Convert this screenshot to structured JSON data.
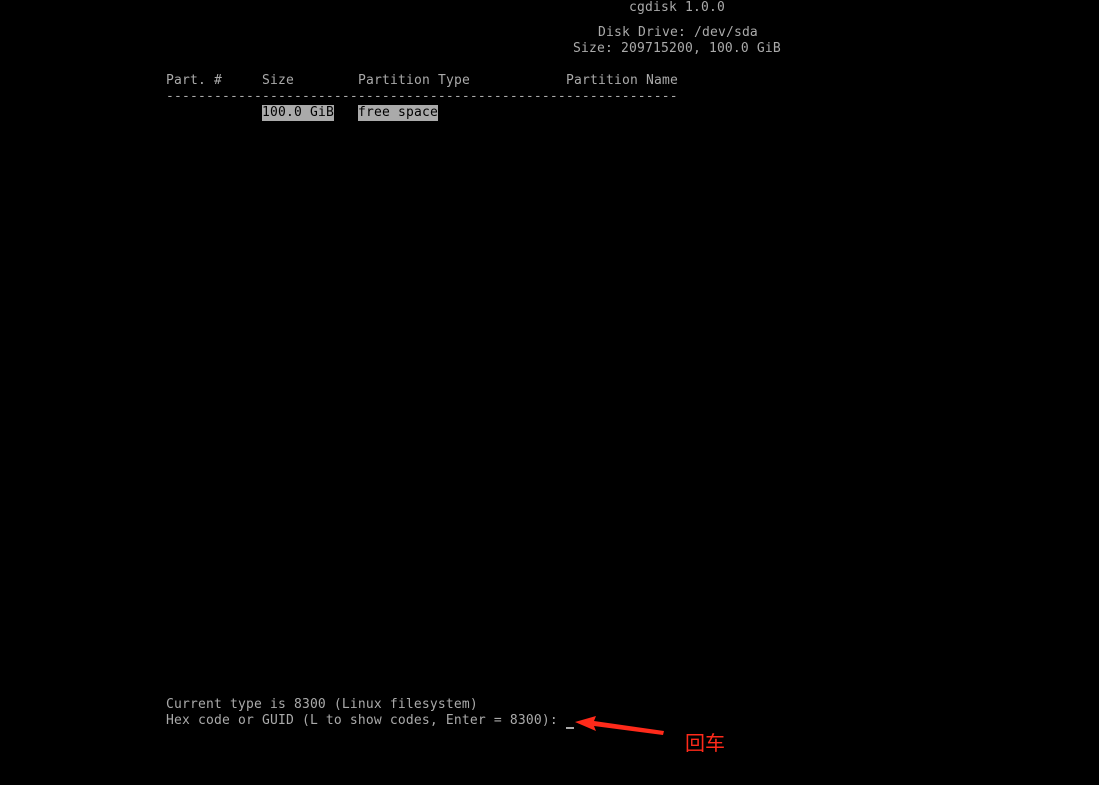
{
  "header": {
    "title": "cgdisk 1.0.0",
    "disk_drive": "Disk Drive: /dev/sda",
    "size": "Size: 209715200, 100.0 GiB"
  },
  "table": {
    "columns": [
      "Part. #",
      "Size",
      "Partition Type",
      "Partition Name"
    ],
    "separator": "----------------------------------------------------------------",
    "rows": [
      {
        "part": "",
        "size": "100.0 GiB",
        "type": "free space",
        "name": "",
        "selected": true
      }
    ]
  },
  "prompt": {
    "current_type": "Current type is 8300 (Linux filesystem)",
    "question": "Hex code or GUID (L to show codes, Enter = 8300): ",
    "input_value": ""
  },
  "annotation": {
    "text": "回车",
    "color": "#ff2a1a"
  },
  "colors": {
    "background": "#000000",
    "text": "#aaaaaa",
    "highlight": "#aaaaaa"
  }
}
